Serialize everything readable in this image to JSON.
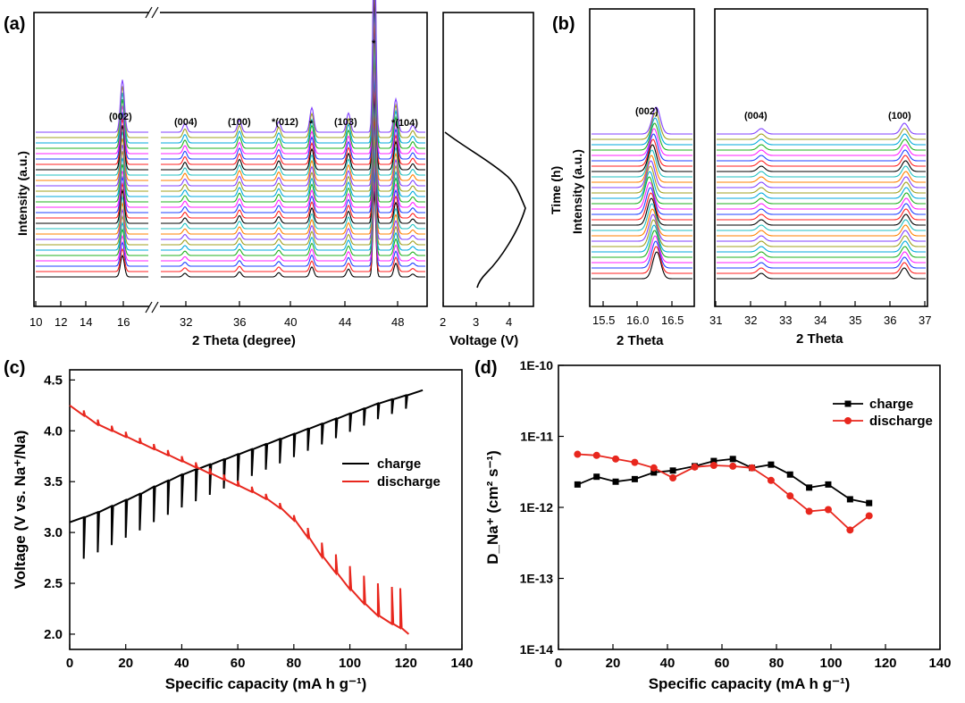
{
  "panels": {
    "a": {
      "label": "(a)",
      "xlabel": "2 Theta (degree)",
      "ylabel": "Intensity (a.u.)",
      "xticks_left": [
        "10",
        "12",
        "14",
        "16"
      ],
      "xticks_right": [
        "32",
        "36",
        "40",
        "44",
        "48"
      ],
      "peaks": [
        "(002)",
        "(004)",
        "(100)",
        "*(012)",
        "*",
        "(103)",
        "*",
        "*(104)"
      ],
      "voltage_xlabel": "Voltage (V)",
      "voltage_ticks": [
        "2",
        "3",
        "4"
      ]
    },
    "b": {
      "label": "(b)",
      "ylabel": "Intensity (a.u.)",
      "ylabel2": "Time (h)",
      "xlabel_left": "2 Theta",
      "xlabel_right": "2 Theta",
      "xticks_left": [
        "15.5",
        "16.0",
        "16.5"
      ],
      "xticks_right": [
        "31",
        "32",
        "33",
        "34",
        "35",
        "36",
        "37"
      ],
      "peaks": [
        "(002)",
        "(004)",
        "(100)"
      ]
    },
    "c": {
      "label": "(c)"
    },
    "d": {
      "label": "(d)"
    }
  },
  "trace_colors": [
    "#000000",
    "#ff2020",
    "#2040ff",
    "#ff20ff",
    "#20b020",
    "#00aadd",
    "#a0a020",
    "#8040ff",
    "#ff8000",
    "#20c0c0",
    "#000000",
    "#ff2020",
    "#2040ff",
    "#ff20ff",
    "#20b020",
    "#00aadd",
    "#a0a020",
    "#8040ff",
    "#ff8000",
    "#20c0c0",
    "#000000",
    "#ff2020",
    "#2040ff",
    "#ff20ff",
    "#20b020",
    "#00aadd",
    "#a0a020",
    "#8040ff"
  ],
  "chart_data": [
    {
      "type": "line",
      "panel": "c",
      "title": "",
      "xlabel": "Specific capacity (mA h g⁻¹)",
      "ylabel": "Voltage (V vs. Na⁺/Na)",
      "xlim": [
        0,
        140
      ],
      "ylim": [
        1.85,
        4.6
      ],
      "xticks": [
        0,
        20,
        40,
        60,
        80,
        100,
        120,
        140
      ],
      "yticks": [
        2.0,
        2.5,
        3.0,
        3.5,
        4.0,
        4.5
      ],
      "series": [
        {
          "name": "charge",
          "color": "#000000",
          "x": [
            0,
            5,
            10,
            15,
            20,
            25,
            30,
            35,
            40,
            45,
            50,
            55,
            60,
            65,
            70,
            75,
            80,
            85,
            90,
            95,
            100,
            105,
            110,
            115,
            120,
            126
          ],
          "y": [
            3.1,
            3.15,
            3.2,
            3.26,
            3.32,
            3.38,
            3.45,
            3.51,
            3.57,
            3.62,
            3.67,
            3.72,
            3.77,
            3.82,
            3.87,
            3.92,
            3.97,
            4.02,
            4.07,
            4.12,
            4.17,
            4.22,
            4.27,
            4.31,
            4.35,
            4.4
          ]
        },
        {
          "name": "discharge",
          "color": "#e8271e",
          "x": [
            0,
            5,
            10,
            15,
            20,
            25,
            30,
            35,
            40,
            45,
            50,
            55,
            60,
            65,
            70,
            75,
            80,
            85,
            90,
            95,
            100,
            105,
            110,
            115,
            118,
            121
          ],
          "y": [
            4.25,
            4.15,
            4.06,
            4.0,
            3.94,
            3.88,
            3.82,
            3.76,
            3.7,
            3.64,
            3.58,
            3.52,
            3.46,
            3.4,
            3.33,
            3.24,
            3.12,
            2.95,
            2.76,
            2.6,
            2.44,
            2.3,
            2.18,
            2.1,
            2.06,
            2.0
          ]
        }
      ],
      "legend": {
        "position": "right-middle",
        "entries": [
          "charge",
          "discharge"
        ]
      }
    },
    {
      "type": "line",
      "panel": "d",
      "title": "",
      "xlabel": "Specific capacity (mA h g⁻¹)",
      "ylabel": "D_Na⁺ (cm² s⁻¹)",
      "xlim": [
        0,
        140
      ],
      "yscale": "log",
      "ylim": [
        1e-14,
        1e-10
      ],
      "xticks": [
        0,
        20,
        40,
        60,
        80,
        100,
        120,
        140
      ],
      "ytick_labels": [
        "1E-10",
        "1E-11",
        "1E-12",
        "1E-13",
        "1E-14"
      ],
      "series": [
        {
          "name": "charge",
          "color": "#000000",
          "marker": "square",
          "x": [
            7,
            14,
            21,
            28,
            35,
            42,
            50,
            57,
            64,
            71,
            78,
            85,
            92,
            99,
            107,
            114
          ],
          "y": [
            2.1e-12,
            2.7e-12,
            2.3e-12,
            2.5e-12,
            3.1e-12,
            3.3e-12,
            3.8e-12,
            4.5e-12,
            4.8e-12,
            3.6e-12,
            4e-12,
            2.9e-12,
            1.9e-12,
            2.1e-12,
            1.3e-12,
            1.15e-12
          ]
        },
        {
          "name": "discharge",
          "color": "#e8271e",
          "marker": "circle",
          "x": [
            7,
            14,
            21,
            28,
            35,
            42,
            50,
            57,
            64,
            71,
            78,
            85,
            92,
            99,
            107,
            114
          ],
          "y": [
            5.6e-12,
            5.4e-12,
            4.8e-12,
            4.3e-12,
            3.6e-12,
            2.6e-12,
            3.7e-12,
            3.9e-12,
            3.8e-12,
            3.6e-12,
            2.4e-12,
            1.45e-12,
            8.8e-13,
            9.3e-13,
            4.8e-13,
            7.6e-13
          ]
        }
      ],
      "legend": {
        "position": "top-right",
        "entries": [
          "charge",
          "discharge"
        ]
      }
    }
  ]
}
